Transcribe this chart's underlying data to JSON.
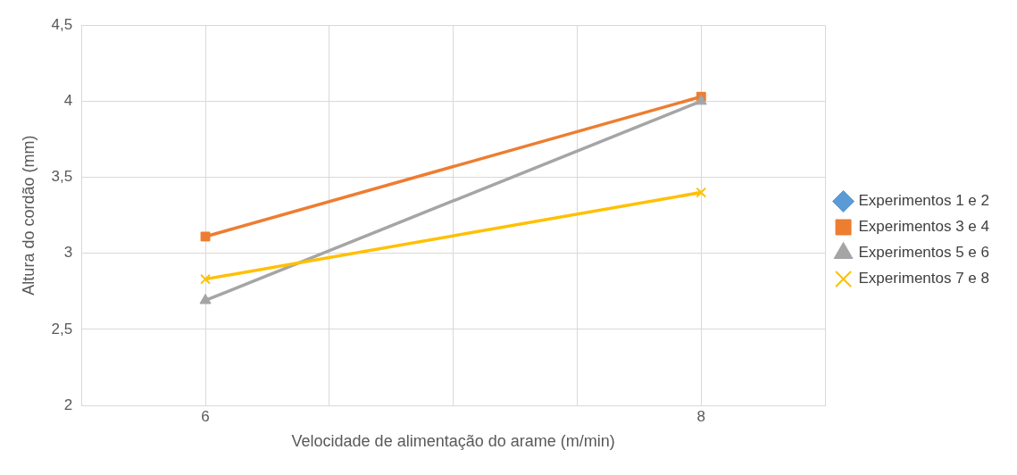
{
  "chart_data": {
    "type": "line",
    "xlabel": "Velocidade de alimentação do arame (m/min)",
    "ylabel": "Altura do cordão (mm)",
    "x": [
      6,
      8
    ],
    "xlim": [
      5.5,
      8.5
    ],
    "xticks": [
      {
        "value": 5.5,
        "label": null
      },
      6,
      {
        "value": 6.5,
        "label": null
      },
      {
        "value": 7,
        "label": null
      },
      {
        "value": 7.5,
        "label": null
      },
      8,
      {
        "value": 8.5,
        "label": null
      }
    ],
    "ylim": [
      2,
      4.5
    ],
    "yticks": [
      2,
      {
        "value": 2.5,
        "label": "2,5"
      },
      3,
      {
        "value": 3.5,
        "label": "3,5"
      },
      4,
      {
        "value": 4.5,
        "label": "4,5"
      }
    ],
    "grid": true,
    "legend": "right",
    "series": [
      {
        "name": "Experimentos 1 e 2",
        "color": "#5b9bd5",
        "marker": "diamond",
        "values": [
          null,
          null
        ]
      },
      {
        "name": "Experimentos 3 e 4",
        "color": "#ed7d31",
        "marker": "square",
        "values": [
          3.11,
          4.03
        ]
      },
      {
        "name": "Experimentos 5 e 6",
        "color": "#a5a5a5",
        "marker": "triangle",
        "values": [
          2.69,
          4.0
        ]
      },
      {
        "name": "Experimentos 7 e 8",
        "color": "#ffc000",
        "marker": "cross",
        "values": [
          2.83,
          3.4
        ]
      }
    ]
  }
}
